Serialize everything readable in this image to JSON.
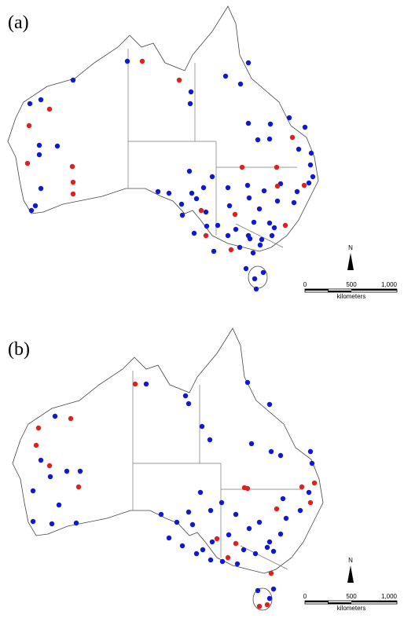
{
  "panels": [
    {
      "label": "(a)"
    },
    {
      "label": "(b)"
    }
  ],
  "north_label": "N",
  "scale_bar": {
    "labels": [
      "0",
      "500",
      "1,000"
    ],
    "unit": "kilometers"
  }
}
